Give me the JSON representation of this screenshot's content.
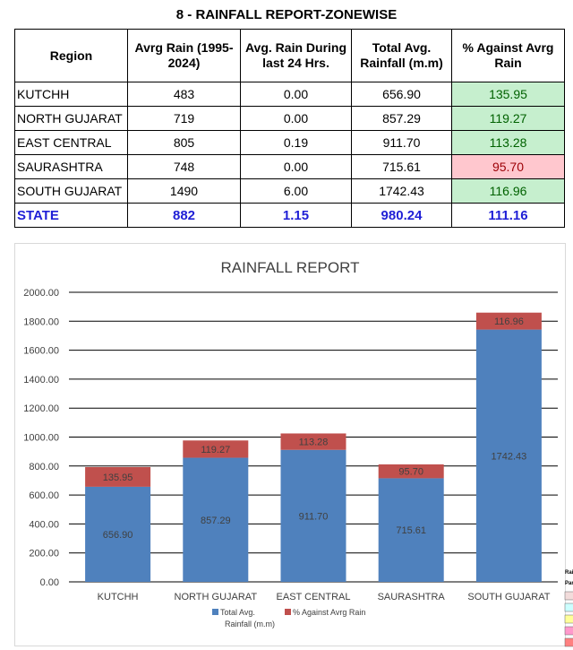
{
  "report_title": "8 - RAINFALL REPORT-ZONEWISE",
  "table": {
    "headers": [
      "Region",
      "Avrg Rain (1995-2024)",
      "Avg. Rain During last 24 Hrs.",
      "Total Avg. Rainfall (m.m)",
      "% Against Avrg Rain"
    ],
    "rows": [
      {
        "region": "KUTCHH",
        "avg": "483",
        "last24": "0.00",
        "total": "656.90",
        "pct": "135.95",
        "status": "above"
      },
      {
        "region": "NORTH GUJARAT",
        "avg": "719",
        "last24": "0.00",
        "total": "857.29",
        "pct": "119.27",
        "status": "above"
      },
      {
        "region": "EAST CENTRAL",
        "avg": "805",
        "last24": "0.19",
        "total": "911.70",
        "pct": "113.28",
        "status": "above"
      },
      {
        "region": "SAURASHTRA",
        "avg": "748",
        "last24": "0.00",
        "total": "715.61",
        "pct": "95.70",
        "status": "below"
      },
      {
        "region": "SOUTH GUJARAT",
        "avg": "1490",
        "last24": "6.00",
        "total": "1742.43",
        "pct": "116.96",
        "status": "above"
      }
    ],
    "state": {
      "region": "STATE",
      "avg": "882",
      "last24": "1.15",
      "total": "980.24",
      "pct": "111.16"
    }
  },
  "chart_data": {
    "type": "bar",
    "stacked": true,
    "title": "RAINFALL REPORT",
    "categories": [
      "KUTCHH",
      "NORTH GUJARAT",
      "EAST CENTRAL",
      "SAURASHTRA",
      "SOUTH GUJARAT"
    ],
    "series": [
      {
        "name": "Total Avg. Rainfall (m.m)",
        "color": "#4f81bd",
        "values": [
          656.9,
          857.29,
          911.7,
          715.61,
          1742.43
        ],
        "labels": [
          "656.90",
          "857.29",
          "911.70",
          "715.61",
          "1742.43"
        ]
      },
      {
        "name": "% Against Avrg Rain",
        "color": "#c0504d",
        "values": [
          135.95,
          119.27,
          113.28,
          95.7,
          116.96
        ],
        "labels": [
          "135.95",
          "119.27",
          "113.28",
          "95.70",
          "116.96"
        ]
      }
    ],
    "y_ticks": [
      "0.00",
      "200.00",
      "400.00",
      "600.00",
      "800.00",
      "1000.00",
      "1200.00",
      "1400.00",
      "1600.00",
      "1800.00",
      "2000.00"
    ],
    "ylim": [
      0,
      2000
    ],
    "grid": true,
    "legend_position": "bottom",
    "legend_lines": [
      [
        "Total Avg.",
        "Rainfall (m.m)"
      ],
      [
        "% Against Avrg Rain"
      ]
    ]
  },
  "edge_legend": {
    "labels": [
      "Rai",
      "Par"
    ],
    "colors": [
      "#f2dcdb",
      "#ccffff",
      "#ffff99",
      "#ff99cc",
      "#ff8080"
    ]
  }
}
